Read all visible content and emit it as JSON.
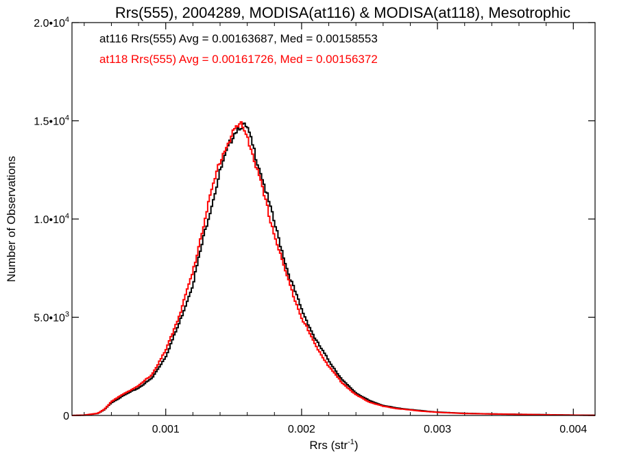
{
  "chart_data": {
    "type": "line",
    "title": "Rrs(555), 2004289, MODISA(at116) & MODISA(at118), Mesotrophic",
    "xlabel": "Rrs (str",
    "xlabel_sup": "-1",
    "xlabel_end": ")",
    "ylabel": "Number of Observations",
    "xlim": [
      0.00031,
      0.00416
    ],
    "ylim": [
      0,
      20000
    ],
    "x_ticks": [
      {
        "value": 0.001,
        "label": "0.001"
      },
      {
        "value": 0.002,
        "label": "0.002"
      },
      {
        "value": 0.003,
        "label": "0.003"
      },
      {
        "value": 0.004,
        "label": "0.004"
      }
    ],
    "y_ticks": [
      {
        "value": 0,
        "base": "0",
        "sup": ""
      },
      {
        "value": 5000,
        "base": "5.0•10",
        "sup": "3"
      },
      {
        "value": 10000,
        "base": "1.0•10",
        "sup": "4"
      },
      {
        "value": 15000,
        "base": "1.5•10",
        "sup": "4"
      },
      {
        "value": 20000,
        "base": "2.0•10",
        "sup": "4"
      }
    ],
    "grid": false,
    "legend_position": "top-left",
    "x": [
      0.00031,
      0.0004,
      0.0005,
      0.00055,
      0.0006,
      0.0007,
      0.0008,
      0.0009,
      0.001,
      0.0011,
      0.0012,
      0.0013,
      0.0014,
      0.0015,
      0.00155,
      0.0016,
      0.0017,
      0.0018,
      0.0019,
      0.002,
      0.0021,
      0.0022,
      0.0023,
      0.0024,
      0.0025,
      0.0026,
      0.0027,
      0.0028,
      0.0029,
      0.003,
      0.0032,
      0.0034,
      0.0036,
      0.0038,
      0.004,
      0.00416
    ],
    "series": [
      {
        "name": "at116 Rrs(555) Avg = 0.00163687, Med = 0.00158553",
        "color": "#000000",
        "values": [
          0,
          15,
          100,
          300,
          650,
          1050,
          1400,
          1900,
          3000,
          4700,
          6700,
          9700,
          12400,
          14400,
          14800,
          14600,
          12400,
          9800,
          7300,
          5400,
          3900,
          2800,
          1800,
          1150,
          750,
          510,
          380,
          300,
          230,
          170,
          110,
          80,
          60,
          40,
          20,
          10
        ]
      },
      {
        "name": "at118 Rrs(555) Avg = 0.00161726, Med = 0.00156372",
        "color": "#ff0000",
        "values": [
          0,
          15,
          110,
          320,
          700,
          1150,
          1500,
          2100,
          3300,
          5100,
          7300,
          10400,
          13000,
          14500,
          14800,
          14300,
          11800,
          9200,
          6900,
          5000,
          3600,
          2500,
          1650,
          1050,
          680,
          470,
          350,
          280,
          210,
          160,
          100,
          75,
          55,
          35,
          18,
          8
        ]
      }
    ]
  }
}
